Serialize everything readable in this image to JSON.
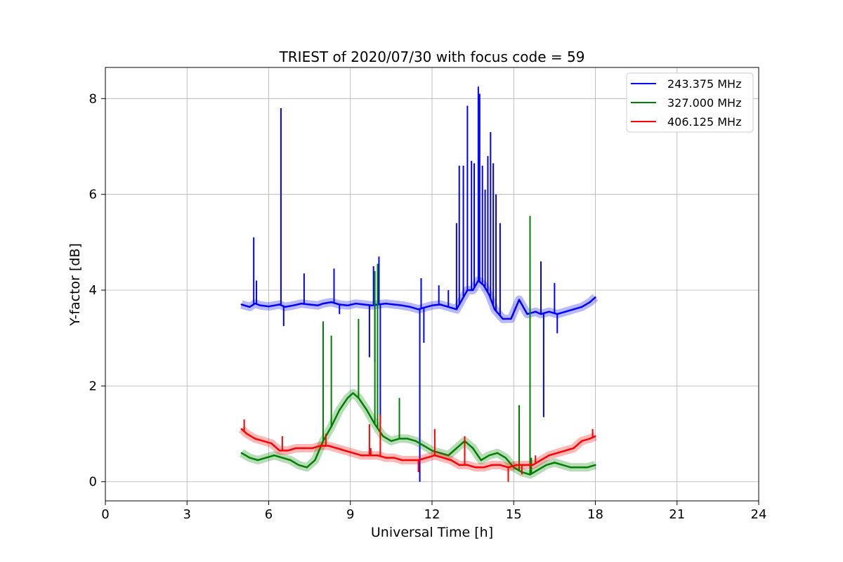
{
  "chart_data": {
    "type": "line",
    "title": "TRIEST of 2020/07/30 with focus code = 59",
    "xlabel": "Universal Time [h]",
    "ylabel": "Y-factor [dB]",
    "xlim": [
      0,
      24
    ],
    "ylim": [
      -0.4,
      8.65
    ],
    "xticks": [
      0,
      3,
      6,
      9,
      12,
      15,
      18,
      21,
      24
    ],
    "yticks": [
      0,
      2,
      4,
      6,
      8
    ],
    "grid": true,
    "legend_position": "top-right",
    "series": [
      {
        "name": "243.375 MHz",
        "color": "#0000ff",
        "x": [
          5.0,
          5.3,
          5.5,
          5.7,
          6.0,
          6.4,
          6.6,
          6.9,
          7.2,
          7.5,
          7.8,
          8.0,
          8.3,
          8.6,
          8.9,
          9.2,
          9.5,
          9.8,
          10.0,
          10.3,
          10.6,
          10.9,
          11.2,
          11.5,
          11.8,
          12.0,
          12.3,
          12.6,
          12.9,
          13.1,
          13.3,
          13.5,
          13.7,
          13.9,
          14.1,
          14.3,
          14.6,
          14.9,
          15.2,
          15.5,
          15.8,
          16.0,
          16.3,
          16.6,
          16.9,
          17.2,
          17.5,
          17.8,
          18.0
        ],
        "y": [
          3.7,
          3.65,
          3.72,
          3.68,
          3.66,
          3.7,
          3.65,
          3.68,
          3.72,
          3.7,
          3.68,
          3.72,
          3.75,
          3.7,
          3.68,
          3.72,
          3.7,
          3.68,
          3.7,
          3.72,
          3.7,
          3.68,
          3.65,
          3.6,
          3.65,
          3.68,
          3.7,
          3.65,
          3.6,
          3.8,
          4.0,
          4.0,
          4.2,
          4.1,
          3.9,
          3.6,
          3.4,
          3.4,
          3.8,
          3.5,
          3.55,
          3.5,
          3.55,
          3.5,
          3.55,
          3.6,
          3.65,
          3.75,
          3.85
        ],
        "spikes": [
          {
            "x": 5.45,
            "y": 5.1
          },
          {
            "x": 5.55,
            "y": 4.2
          },
          {
            "x": 6.45,
            "y": 7.8
          },
          {
            "x": 6.55,
            "y": 3.25
          },
          {
            "x": 7.3,
            "y": 4.35
          },
          {
            "x": 8.4,
            "y": 4.45
          },
          {
            "x": 8.6,
            "y": 3.5
          },
          {
            "x": 9.7,
            "y": 2.6
          },
          {
            "x": 9.85,
            "y": 4.5
          },
          {
            "x": 9.9,
            "y": 2.5
          },
          {
            "x": 10.05,
            "y": 4.7
          },
          {
            "x": 10.1,
            "y": 1.2
          },
          {
            "x": 11.55,
            "y": 0.0
          },
          {
            "x": 11.6,
            "y": 4.25
          },
          {
            "x": 11.7,
            "y": 2.9
          },
          {
            "x": 12.25,
            "y": 4.1
          },
          {
            "x": 12.6,
            "y": 4.0
          },
          {
            "x": 12.9,
            "y": 5.4
          },
          {
            "x": 13.0,
            "y": 6.6
          },
          {
            "x": 13.15,
            "y": 6.6
          },
          {
            "x": 13.3,
            "y": 7.85
          },
          {
            "x": 13.45,
            "y": 6.7
          },
          {
            "x": 13.55,
            "y": 6.65
          },
          {
            "x": 13.7,
            "y": 8.25
          },
          {
            "x": 13.75,
            "y": 8.1
          },
          {
            "x": 13.85,
            "y": 6.6
          },
          {
            "x": 13.95,
            "y": 6.1
          },
          {
            "x": 14.05,
            "y": 6.8
          },
          {
            "x": 14.15,
            "y": 7.3
          },
          {
            "x": 14.25,
            "y": 6.65
          },
          {
            "x": 14.35,
            "y": 6.0
          },
          {
            "x": 14.5,
            "y": 5.4
          },
          {
            "x": 15.6,
            "y": 3.9
          },
          {
            "x": 16.0,
            "y": 4.6
          },
          {
            "x": 16.1,
            "y": 1.35
          },
          {
            "x": 16.5,
            "y": 4.15
          },
          {
            "x": 16.6,
            "y": 3.1
          }
        ]
      },
      {
        "name": "327.000 MHz",
        "color": "#008000",
        "x": [
          5.0,
          5.3,
          5.6,
          5.9,
          6.2,
          6.5,
          6.8,
          7.1,
          7.4,
          7.7,
          8.0,
          8.3,
          8.6,
          8.9,
          9.1,
          9.3,
          9.6,
          9.9,
          10.2,
          10.5,
          10.8,
          11.1,
          11.4,
          11.7,
          12.0,
          12.3,
          12.6,
          12.9,
          13.2,
          13.5,
          13.8,
          14.1,
          14.4,
          14.7,
          15.0,
          15.3,
          15.6,
          15.9,
          16.2,
          16.5,
          16.8,
          17.1,
          17.4,
          17.7,
          18.0
        ],
        "y": [
          0.6,
          0.5,
          0.45,
          0.5,
          0.55,
          0.5,
          0.45,
          0.35,
          0.3,
          0.45,
          0.85,
          1.15,
          1.5,
          1.75,
          1.85,
          1.75,
          1.5,
          1.2,
          0.95,
          0.85,
          0.9,
          0.9,
          0.85,
          0.75,
          0.65,
          0.6,
          0.55,
          0.7,
          0.85,
          0.7,
          0.45,
          0.55,
          0.6,
          0.5,
          0.3,
          0.2,
          0.15,
          0.25,
          0.35,
          0.4,
          0.35,
          0.3,
          0.3,
          0.3,
          0.35
        ],
        "spikes": [
          {
            "x": 8.0,
            "y": 3.35
          },
          {
            "x": 8.3,
            "y": 3.05
          },
          {
            "x": 9.3,
            "y": 3.4
          },
          {
            "x": 9.9,
            "y": 4.4
          },
          {
            "x": 10.0,
            "y": 4.55
          },
          {
            "x": 10.8,
            "y": 1.75
          },
          {
            "x": 15.2,
            "y": 1.6
          },
          {
            "x": 15.6,
            "y": 5.55
          },
          {
            "x": 15.65,
            "y": 0.5
          }
        ]
      },
      {
        "name": "406.125 MHz",
        "color": "#ff0000",
        "x": [
          5.0,
          5.2,
          5.5,
          5.8,
          6.1,
          6.4,
          6.7,
          7.0,
          7.3,
          7.6,
          7.9,
          8.2,
          8.5,
          8.8,
          9.1,
          9.4,
          9.7,
          10.0,
          10.3,
          10.6,
          10.9,
          11.2,
          11.5,
          11.8,
          12.1,
          12.4,
          12.7,
          13.0,
          13.3,
          13.6,
          13.9,
          14.2,
          14.5,
          14.8,
          15.1,
          15.4,
          15.7,
          16.0,
          16.3,
          16.6,
          16.9,
          17.2,
          17.5,
          17.8,
          18.0
        ],
        "y": [
          1.1,
          1.0,
          0.9,
          0.85,
          0.8,
          0.65,
          0.65,
          0.7,
          0.7,
          0.7,
          0.75,
          0.75,
          0.7,
          0.65,
          0.6,
          0.55,
          0.55,
          0.55,
          0.5,
          0.5,
          0.45,
          0.45,
          0.45,
          0.5,
          0.55,
          0.5,
          0.45,
          0.35,
          0.35,
          0.3,
          0.3,
          0.35,
          0.35,
          0.3,
          0.35,
          0.35,
          0.35,
          0.45,
          0.55,
          0.6,
          0.65,
          0.7,
          0.85,
          0.9,
          0.95
        ],
        "spikes": [
          {
            "x": 5.1,
            "y": 1.3
          },
          {
            "x": 6.5,
            "y": 0.95
          },
          {
            "x": 8.1,
            "y": 1.0
          },
          {
            "x": 9.7,
            "y": 1.2
          },
          {
            "x": 9.75,
            "y": 0.7
          },
          {
            "x": 10.1,
            "y": 1.4
          },
          {
            "x": 11.5,
            "y": 0.2
          },
          {
            "x": 12.1,
            "y": 1.1
          },
          {
            "x": 13.2,
            "y": 0.95
          },
          {
            "x": 14.8,
            "y": 0.0
          },
          {
            "x": 15.3,
            "y": 0.15
          },
          {
            "x": 15.8,
            "y": 0.55
          },
          {
            "x": 17.9,
            "y": 1.1
          }
        ]
      }
    ]
  }
}
